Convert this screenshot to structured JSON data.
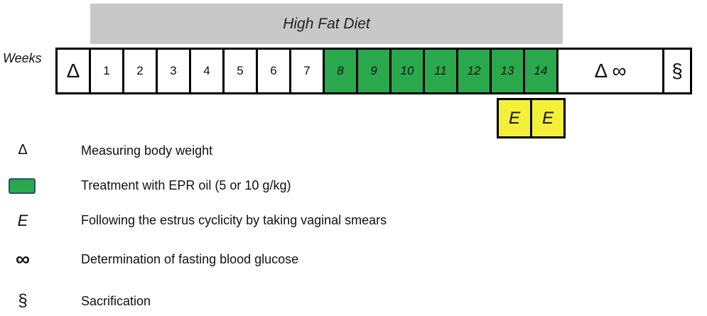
{
  "diet_label": "High Fat Diet",
  "weeks_label": "Weeks",
  "timeline": {
    "start_symbol": "Δ",
    "weeks": [
      {
        "label": "1",
        "treated": false
      },
      {
        "label": "2",
        "treated": false
      },
      {
        "label": "3",
        "treated": false
      },
      {
        "label": "4",
        "treated": false
      },
      {
        "label": "5",
        "treated": false
      },
      {
        "label": "6",
        "treated": false
      },
      {
        "label": "7",
        "treated": false
      },
      {
        "label": "8",
        "treated": true
      },
      {
        "label": "9",
        "treated": true
      },
      {
        "label": "10",
        "treated": true
      },
      {
        "label": "11",
        "treated": true
      },
      {
        "label": "12",
        "treated": true
      },
      {
        "label": "13",
        "treated": true
      },
      {
        "label": "14",
        "treated": true
      }
    ],
    "end_measure_symbols": "Δ ∞",
    "end_symbol": "§"
  },
  "estrus_marks": [
    "E",
    "E"
  ],
  "legend": {
    "weight": {
      "symbol": "Δ",
      "text": "Measuring body weight"
    },
    "treatment": {
      "text": "Treatment with EPR oil  (5 or 10 g/kg)"
    },
    "estrus": {
      "symbol": "E",
      "text": "Following the estrus cyclicity by taking vaginal smears"
    },
    "glucose": {
      "symbol": "∞",
      "text": "Determination of fasting blood glucose"
    },
    "sacrifice": {
      "symbol": "§",
      "text": "Sacrification"
    }
  },
  "colors": {
    "treatment_green": "#2aa84c",
    "estrus_yellow": "#f3f03a",
    "diet_band_gray": "#c8c8c8"
  }
}
